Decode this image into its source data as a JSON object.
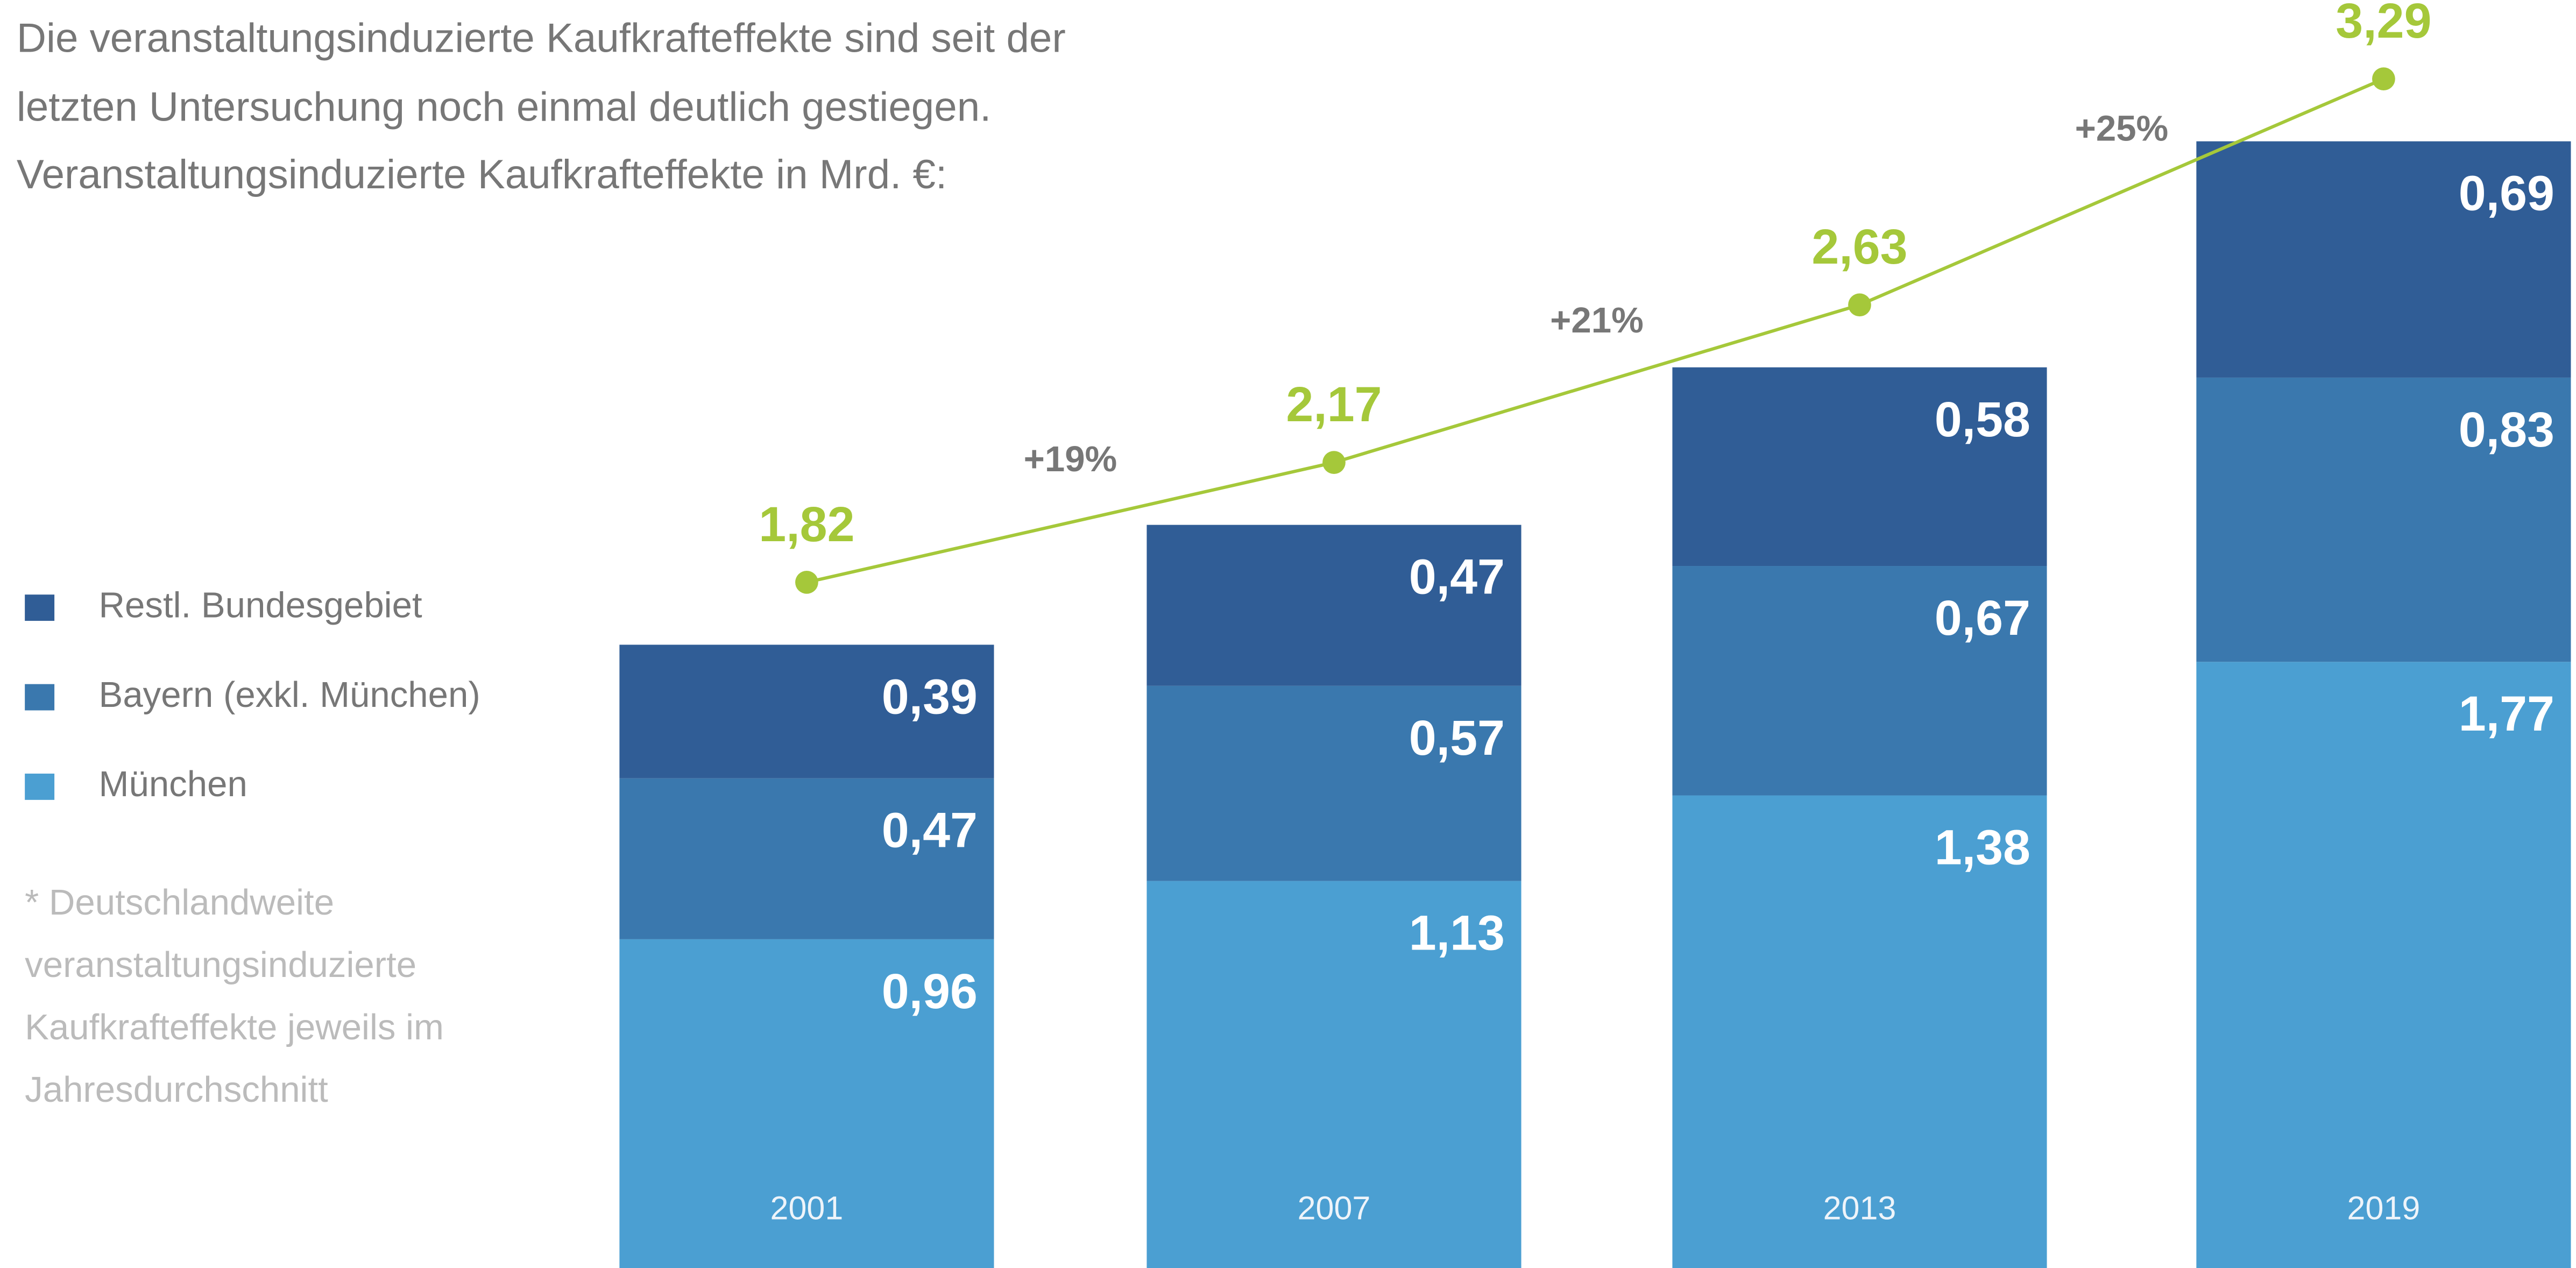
{
  "chart_data": {
    "type": "bar",
    "stacked": true,
    "title": [
      "Die veranstaltungsinduzierte Kaufkrafteffekte sind seit der",
      "letzten Untersuchung noch einmal deutlich gestiegen."
    ],
    "subtitle": "Veranstaltungsinduzierte Kaufkrafteffekte in Mrd. €:",
    "categories": [
      "2001",
      "2007",
      "2013",
      "2019"
    ],
    "series": [
      {
        "name": "München",
        "color": "#4b9fd2",
        "values": [
          0.96,
          1.13,
          1.38,
          1.77
        ],
        "value_labels": [
          "0,96",
          "1,13",
          "1,38",
          "1,77"
        ]
      },
      {
        "name": "Bayern (exkl. München)",
        "color": "#3a78ae",
        "values": [
          0.47,
          0.57,
          0.67,
          0.83
        ],
        "value_labels": [
          "0,47",
          "0,57",
          "0,67",
          "0,83"
        ]
      },
      {
        "name": "Restl. Bundesgebiet",
        "color": "#305d96",
        "values": [
          0.39,
          0.47,
          0.58,
          0.69
        ],
        "value_labels": [
          "0,39",
          "0,47",
          "0,58",
          "0,69"
        ]
      }
    ],
    "line": {
      "color": "#a5c83a",
      "values": [
        1.82,
        2.17,
        2.63,
        3.29
      ],
      "value_labels": [
        "1,82",
        "2,17",
        "2,63",
        "3,29"
      ]
    },
    "growth_labels": [
      "+19%",
      "+21%",
      "+25%"
    ],
    "footnote": [
      "* Deutschlandweite",
      "veranstaltungsinduzierte",
      "Kaufkrafteffekte jeweils im",
      "Jahresdurchschnitt"
    ]
  }
}
